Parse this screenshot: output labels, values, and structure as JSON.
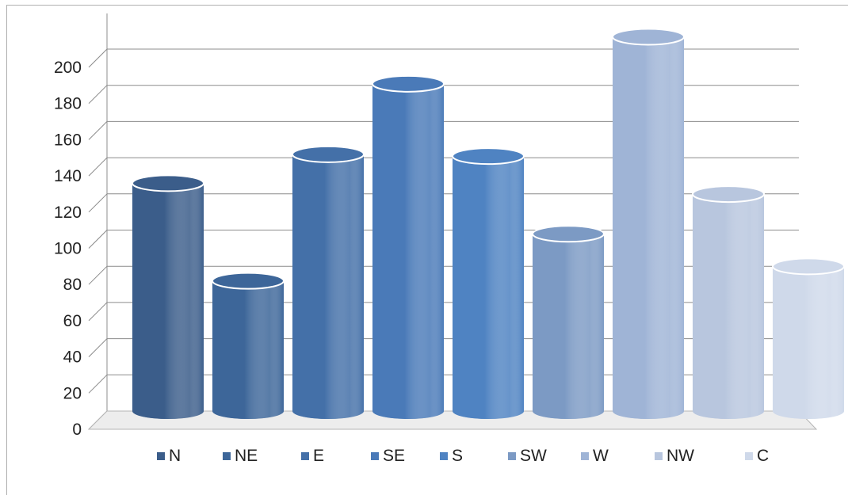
{
  "chart_data": {
    "type": "bar",
    "title": "",
    "xlabel": "",
    "ylabel": "",
    "categories": [
      "N",
      "NE",
      "E",
      "SE",
      "S",
      "SW",
      "W",
      "NW",
      "C"
    ],
    "values": [
      126,
      72,
      142,
      181,
      141,
      98,
      207,
      120,
      80
    ],
    "ylim": [
      0,
      200
    ],
    "yticks": [
      "0",
      "20",
      "40",
      "60",
      "80",
      "100",
      "120",
      "140",
      "160",
      "180",
      "200"
    ],
    "grid": true,
    "legend": "bottom",
    "style": "3d-cylinder",
    "colors": [
      "#3b5d8a",
      "#3d6699",
      "#4470a8",
      "#4a7ab8",
      "#4f83c2",
      "#7c9ac4",
      "#9fb4d6",
      "#b8c6de",
      "#cfd9ea"
    ]
  }
}
